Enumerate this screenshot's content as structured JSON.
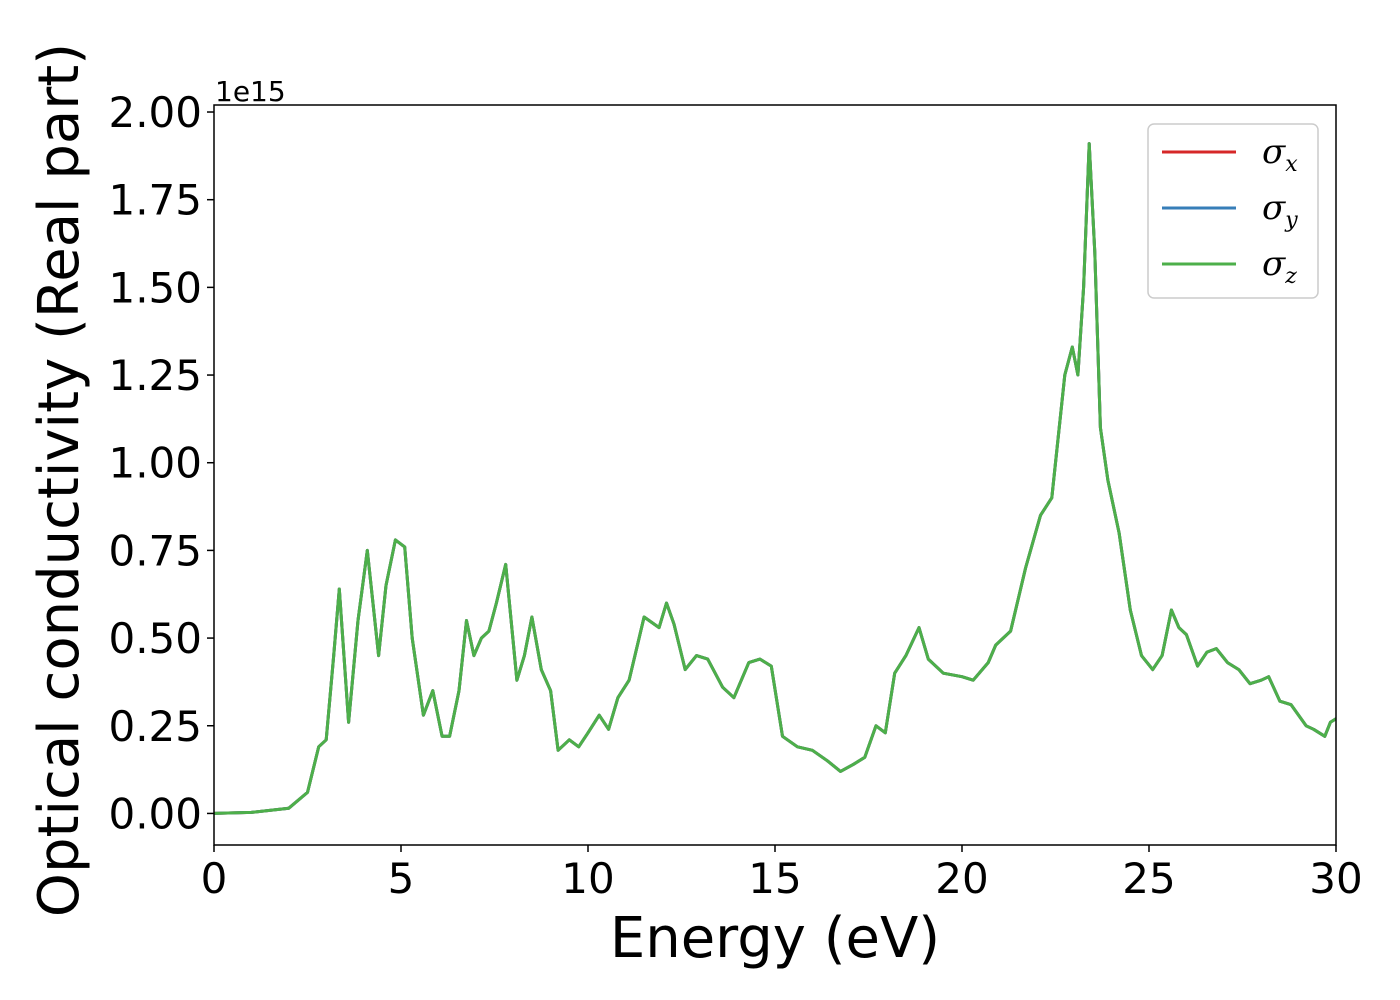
{
  "chart_data": {
    "type": "line",
    "title": "",
    "xlabel": "Energy (eV)",
    "ylabel": "Optical conductivity (Real part)",
    "y_offset_label": "1e15",
    "xlim": [
      0,
      30
    ],
    "ylim": [
      -0.09,
      2.02
    ],
    "xticks": [
      0,
      5,
      10,
      15,
      20,
      25,
      30
    ],
    "xtick_labels": [
      "0",
      "5",
      "10",
      "15",
      "20",
      "25",
      "30"
    ],
    "yticks": [
      0.0,
      0.25,
      0.5,
      0.75,
      1.0,
      1.25,
      1.5,
      1.75,
      2.0
    ],
    "ytick_labels": [
      "0.00",
      "0.25",
      "0.50",
      "0.75",
      "1.00",
      "1.25",
      "1.50",
      "1.75",
      "2.00"
    ],
    "grid": false,
    "legend_position": "top-right",
    "x": [
      0,
      1,
      2,
      2.5,
      2.8,
      3.0,
      3.2,
      3.35,
      3.6,
      3.85,
      4.1,
      4.4,
      4.6,
      4.85,
      5.1,
      5.3,
      5.6,
      5.85,
      6.1,
      6.3,
      6.55,
      6.75,
      6.95,
      7.15,
      7.35,
      7.55,
      7.8,
      8.1,
      8.3,
      8.5,
      8.75,
      9.0,
      9.2,
      9.5,
      9.75,
      10.0,
      10.3,
      10.55,
      10.8,
      11.1,
      11.5,
      11.9,
      12.1,
      12.3,
      12.6,
      12.9,
      13.2,
      13.6,
      13.9,
      14.3,
      14.6,
      14.9,
      15.2,
      15.6,
      16.0,
      16.4,
      16.75,
      17.1,
      17.4,
      17.7,
      17.95,
      18.2,
      18.5,
      18.85,
      19.1,
      19.5,
      20.0,
      20.3,
      20.7,
      20.9,
      21.3,
      21.7,
      22.1,
      22.4,
      22.75,
      22.95,
      23.1,
      23.25,
      23.4,
      23.55,
      23.7,
      23.9,
      24.2,
      24.5,
      24.8,
      25.1,
      25.35,
      25.6,
      25.8,
      26.0,
      26.3,
      26.55,
      26.8,
      27.1,
      27.4,
      27.7,
      28.0,
      28.2,
      28.5,
      28.8,
      29.2,
      29.4,
      29.7,
      29.85,
      30.0
    ],
    "series": [
      {
        "name": "σx",
        "color": "#d62728",
        "values": [
          0.0,
          0.003,
          0.015,
          0.06,
          0.19,
          0.21,
          0.45,
          0.64,
          0.26,
          0.55,
          0.75,
          0.45,
          0.65,
          0.78,
          0.76,
          0.5,
          0.28,
          0.35,
          0.22,
          0.22,
          0.35,
          0.55,
          0.45,
          0.5,
          0.52,
          0.6,
          0.71,
          0.38,
          0.45,
          0.56,
          0.41,
          0.35,
          0.18,
          0.21,
          0.19,
          0.23,
          0.28,
          0.24,
          0.33,
          0.38,
          0.56,
          0.53,
          0.6,
          0.54,
          0.41,
          0.45,
          0.44,
          0.36,
          0.33,
          0.43,
          0.44,
          0.42,
          0.22,
          0.19,
          0.18,
          0.15,
          0.12,
          0.14,
          0.16,
          0.25,
          0.23,
          0.4,
          0.45,
          0.53,
          0.44,
          0.4,
          0.39,
          0.38,
          0.43,
          0.48,
          0.52,
          0.7,
          0.85,
          0.9,
          1.25,
          1.33,
          1.25,
          1.5,
          1.91,
          1.6,
          1.1,
          0.95,
          0.8,
          0.58,
          0.45,
          0.41,
          0.45,
          0.58,
          0.53,
          0.51,
          0.42,
          0.46,
          0.47,
          0.43,
          0.41,
          0.37,
          0.38,
          0.39,
          0.32,
          0.31,
          0.25,
          0.24,
          0.22,
          0.26,
          0.27
        ]
      },
      {
        "name": "σy",
        "color": "#377eb8",
        "values": [
          0.0,
          0.003,
          0.015,
          0.06,
          0.19,
          0.21,
          0.45,
          0.64,
          0.26,
          0.55,
          0.75,
          0.45,
          0.65,
          0.78,
          0.76,
          0.5,
          0.28,
          0.35,
          0.22,
          0.22,
          0.35,
          0.55,
          0.45,
          0.5,
          0.52,
          0.6,
          0.71,
          0.38,
          0.45,
          0.56,
          0.41,
          0.35,
          0.18,
          0.21,
          0.19,
          0.23,
          0.28,
          0.24,
          0.33,
          0.38,
          0.56,
          0.53,
          0.6,
          0.54,
          0.41,
          0.45,
          0.44,
          0.36,
          0.33,
          0.43,
          0.44,
          0.42,
          0.22,
          0.19,
          0.18,
          0.15,
          0.12,
          0.14,
          0.16,
          0.25,
          0.23,
          0.4,
          0.45,
          0.53,
          0.44,
          0.4,
          0.39,
          0.38,
          0.43,
          0.48,
          0.52,
          0.7,
          0.85,
          0.9,
          1.25,
          1.33,
          1.25,
          1.5,
          1.91,
          1.6,
          1.1,
          0.95,
          0.8,
          0.58,
          0.45,
          0.41,
          0.45,
          0.58,
          0.53,
          0.51,
          0.42,
          0.46,
          0.47,
          0.43,
          0.41,
          0.37,
          0.38,
          0.39,
          0.32,
          0.31,
          0.25,
          0.24,
          0.22,
          0.26,
          0.27
        ]
      },
      {
        "name": "σz",
        "color": "#4daf4a",
        "values": [
          0.0,
          0.003,
          0.015,
          0.06,
          0.19,
          0.21,
          0.45,
          0.64,
          0.26,
          0.55,
          0.75,
          0.45,
          0.65,
          0.78,
          0.76,
          0.5,
          0.28,
          0.35,
          0.22,
          0.22,
          0.35,
          0.55,
          0.45,
          0.5,
          0.52,
          0.6,
          0.71,
          0.38,
          0.45,
          0.56,
          0.41,
          0.35,
          0.18,
          0.21,
          0.19,
          0.23,
          0.28,
          0.24,
          0.33,
          0.38,
          0.56,
          0.53,
          0.6,
          0.54,
          0.41,
          0.45,
          0.44,
          0.36,
          0.33,
          0.43,
          0.44,
          0.42,
          0.22,
          0.19,
          0.18,
          0.15,
          0.12,
          0.14,
          0.16,
          0.25,
          0.23,
          0.4,
          0.45,
          0.53,
          0.44,
          0.4,
          0.39,
          0.38,
          0.43,
          0.48,
          0.52,
          0.7,
          0.85,
          0.9,
          1.25,
          1.33,
          1.25,
          1.5,
          1.91,
          1.6,
          1.1,
          0.95,
          0.8,
          0.58,
          0.45,
          0.41,
          0.45,
          0.58,
          0.53,
          0.51,
          0.42,
          0.46,
          0.47,
          0.43,
          0.41,
          0.37,
          0.38,
          0.39,
          0.32,
          0.31,
          0.25,
          0.24,
          0.22,
          0.26,
          0.27
        ]
      }
    ],
    "legend": [
      {
        "symbol": "σ",
        "sub": "x",
        "color": "#d62728"
      },
      {
        "symbol": "σ",
        "sub": "y",
        "color": "#377eb8"
      },
      {
        "symbol": "σ",
        "sub": "z",
        "color": "#4daf4a"
      }
    ]
  }
}
